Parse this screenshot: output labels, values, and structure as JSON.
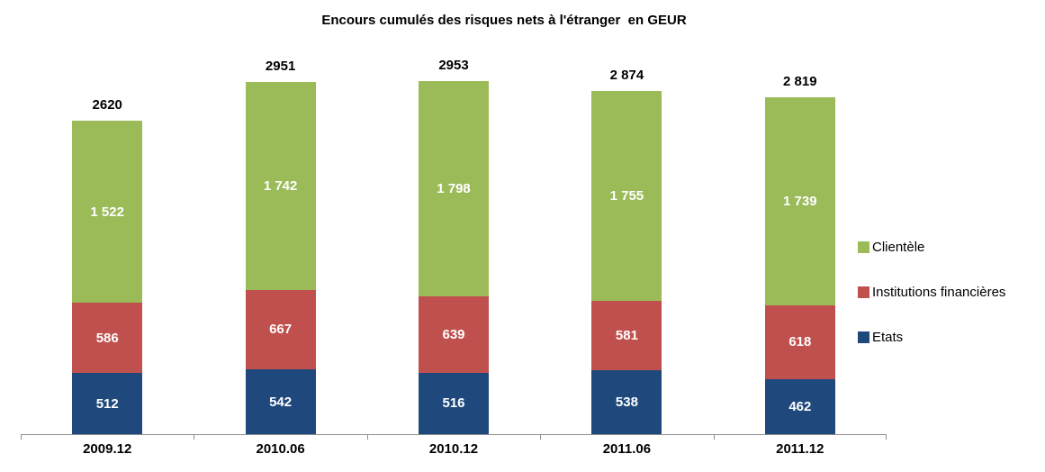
{
  "chart_data": {
    "type": "bar",
    "stacked": true,
    "title": "Encours cumulés des risques nets à l'étranger  en GEUR",
    "categories": [
      "2009.12",
      "2010.06",
      "2010.12",
      "2011.06",
      "2011.12"
    ],
    "series": [
      {
        "name": "Etats",
        "color": "#1F497D",
        "values": [
          512,
          542,
          516,
          538,
          462
        ],
        "labels": [
          "512",
          "542",
          "516",
          "538",
          "462"
        ]
      },
      {
        "name": "Institutions financières",
        "color": "#C0504D",
        "values": [
          586,
          667,
          639,
          581,
          618
        ],
        "labels": [
          "586",
          "667",
          "639",
          "581",
          "618"
        ]
      },
      {
        "name": "Clientèle",
        "color": "#9BBB59",
        "values": [
          1522,
          1742,
          1798,
          1755,
          1739
        ],
        "labels": [
          "1 522",
          "1 742",
          "1 798",
          "1 755",
          "1 739"
        ]
      }
    ],
    "totals": [
      2620,
      2951,
      2953,
      2874,
      2819
    ],
    "total_labels": [
      "2620",
      "2951",
      "2953",
      "2 874",
      "2 819"
    ],
    "ylim": [
      0,
      3000
    ],
    "grid": false,
    "legend_position": "right",
    "legend": [
      {
        "label": "Clientèle",
        "color": "#9BBB59"
      },
      {
        "label": "Institutions financières",
        "color": "#C0504D"
      },
      {
        "label": "Etats",
        "color": "#1F497D"
      }
    ]
  },
  "colors": {
    "axis": "#8e8e8e",
    "background": "#ffffff",
    "bar_label_text": "#ffffff",
    "text": "#000000"
  }
}
